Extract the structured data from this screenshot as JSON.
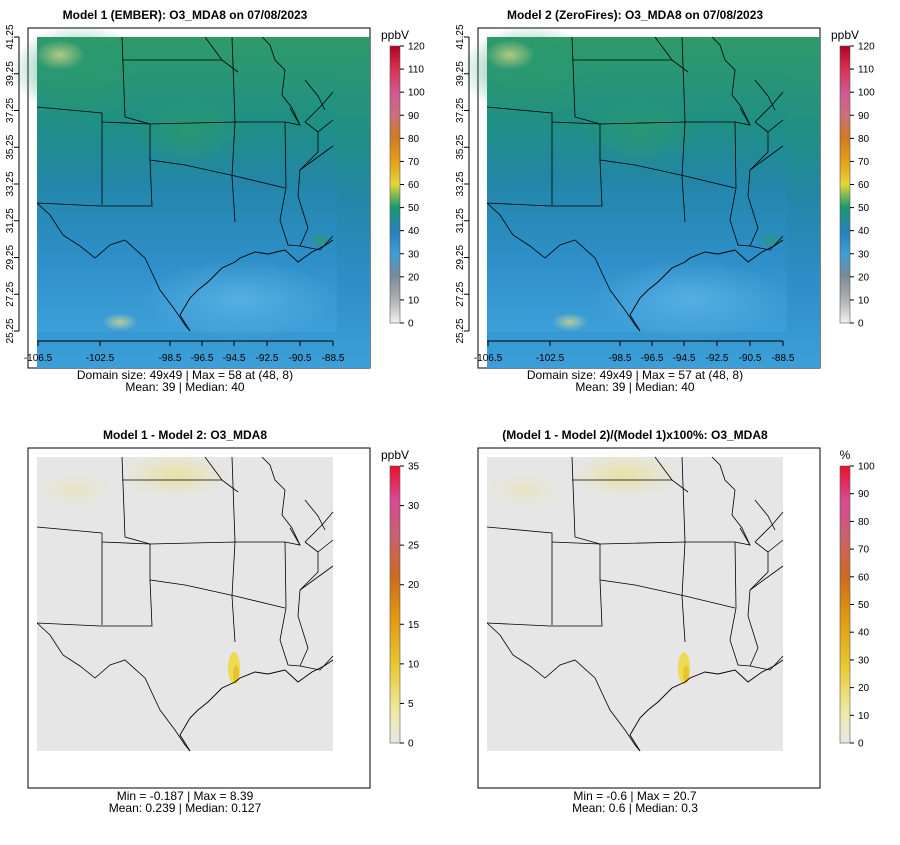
{
  "panels": [
    {
      "title": "Model 1 (EMBER): O3_MDA8 on 07/08/2023",
      "legend_unit": "ppbV",
      "legend_ticks": [
        "0",
        "10",
        "20",
        "30",
        "40",
        "50",
        "60",
        "70",
        "80",
        "90",
        "100",
        "110",
        "120"
      ],
      "scale": "abs",
      "stats_line1": "Domain size: 49x49 | Max = 58 at (48, 8)",
      "stats_line2": "Mean: 39 |  Median: 40",
      "x_ticks": [
        "-106.5",
        "-102.5",
        "-98.5",
        "-96.5",
        "-94.5",
        "-92.5",
        "-90.5",
        "-88.5"
      ],
      "y_ticks": [
        "25.25",
        "27.25",
        "29.25",
        "31.25",
        "33.25",
        "35.25",
        "37.25",
        "39.25",
        "41.25"
      ]
    },
    {
      "title": "Model 2 (ZeroFires): O3_MDA8 on 07/08/2023",
      "legend_unit": "ppbV",
      "legend_ticks": [
        "0",
        "10",
        "20",
        "30",
        "40",
        "50",
        "60",
        "70",
        "80",
        "90",
        "100",
        "110",
        "120"
      ],
      "scale": "abs",
      "stats_line1": "Domain size: 49x49 | Max = 57 at (48, 8)",
      "stats_line2": "Mean: 39 |  Median: 40",
      "x_ticks": [
        "-106.5",
        "-102.5",
        "-98.5",
        "-96.5",
        "-94.5",
        "-92.5",
        "-90.5",
        "-88.5"
      ],
      "y_ticks": [
        "25.25",
        "27.25",
        "29.25",
        "31.25",
        "33.25",
        "35.25",
        "37.25",
        "39.25",
        "41.25"
      ]
    },
    {
      "title": "Model 1 - Model 2: O3_MDA8",
      "legend_unit": "ppbV",
      "legend_ticks": [
        "0",
        "5",
        "10",
        "15",
        "20",
        "25",
        "30",
        "35"
      ],
      "scale": "diff",
      "stats_line1": "Min = -0.187 | Max = 8.39",
      "stats_line2": "Mean: 0.239 |  Median: 0.127"
    },
    {
      "title": "(Model 1 - Model 2)/(Model 1)x100%: O3_MDA8",
      "legend_unit": "%",
      "legend_ticks": [
        "0",
        "10",
        "20",
        "30",
        "40",
        "50",
        "60",
        "70",
        "80",
        "90",
        "100"
      ],
      "scale": "diff",
      "stats_line1": "Min = -0.6 | Max = 20.7",
      "stats_line2": "Mean: 0.6 |  Median: 0.3"
    }
  ],
  "chart_data": [
    {
      "type": "heatmap",
      "title": "Model 1 (EMBER): O3_MDA8 on 07/08/2023",
      "variable": "O3_MDA8",
      "units": "ppbV",
      "grid": [
        49,
        49
      ],
      "x_range": [
        -106.5,
        -88.5
      ],
      "y_range": [
        25.25,
        41.25
      ],
      "color_range": [
        0,
        120
      ],
      "max": 58,
      "max_location": [
        48,
        8
      ],
      "mean": 39,
      "median": 40
    },
    {
      "type": "heatmap",
      "title": "Model 2 (ZeroFires): O3_MDA8 on 07/08/2023",
      "variable": "O3_MDA8",
      "units": "ppbV",
      "grid": [
        49,
        49
      ],
      "x_range": [
        -106.5,
        -88.5
      ],
      "y_range": [
        25.25,
        41.25
      ],
      "color_range": [
        0,
        120
      ],
      "max": 57,
      "max_location": [
        48,
        8
      ],
      "mean": 39,
      "median": 40
    },
    {
      "type": "heatmap",
      "title": "Model 1 - Model 2: O3_MDA8",
      "units": "ppbV",
      "color_range": [
        0,
        35
      ],
      "min": -0.187,
      "max": 8.39,
      "mean": 0.239,
      "median": 0.127
    },
    {
      "type": "heatmap",
      "title": "(Model 1 - Model 2)/(Model 1)x100%: O3_MDA8",
      "units": "%",
      "color_range": [
        0,
        100
      ],
      "min": -0.6,
      "max": 20.7,
      "mean": 0.6,
      "median": 0.3
    }
  ]
}
